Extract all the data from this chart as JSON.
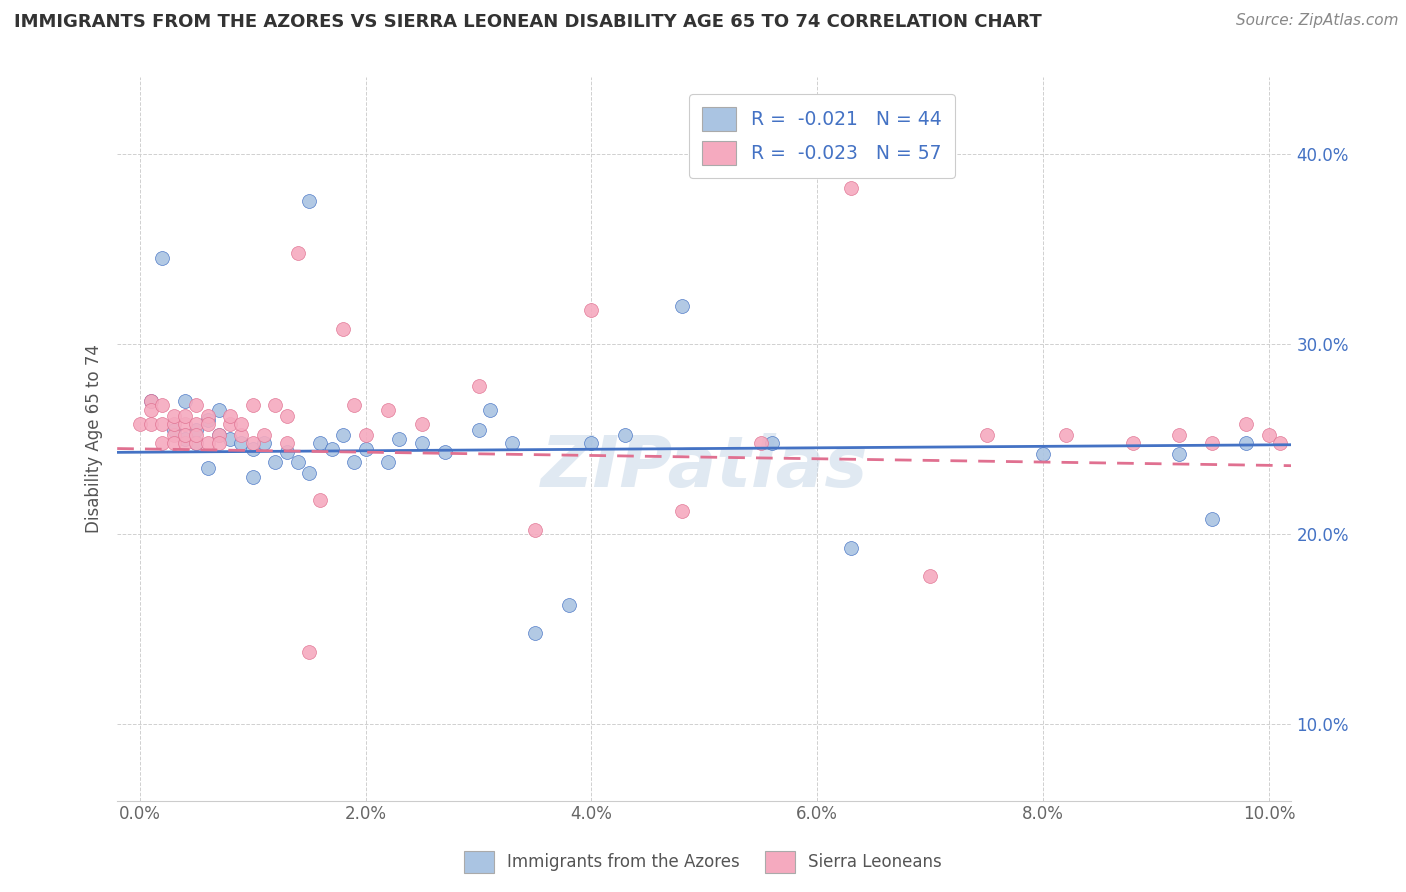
{
  "title": "IMMIGRANTS FROM THE AZORES VS SIERRA LEONEAN DISABILITY AGE 65 TO 74 CORRELATION CHART",
  "source_text": "Source: ZipAtlas.com",
  "ylabel": "Disability Age 65 to 74",
  "xlim": [
    -0.002,
    0.102
  ],
  "ylim": [
    0.06,
    0.44
  ],
  "xtick_labels": [
    "0.0%",
    "2.0%",
    "4.0%",
    "6.0%",
    "8.0%",
    "10.0%"
  ],
  "xtick_vals": [
    0.0,
    0.02,
    0.04,
    0.06,
    0.08,
    0.1
  ],
  "ytick_labels": [
    "10.0%",
    "20.0%",
    "30.0%",
    "40.0%"
  ],
  "ytick_vals": [
    0.1,
    0.2,
    0.3,
    0.4
  ],
  "series1_color": "#aac4e2",
  "series2_color": "#f5aabf",
  "trendline1_color": "#4472c4",
  "trendline2_color": "#e07090",
  "watermark": "ZIPatlas",
  "blue_scatter_x": [
    0.001,
    0.002,
    0.003,
    0.004,
    0.004,
    0.005,
    0.005,
    0.006,
    0.006,
    0.007,
    0.007,
    0.008,
    0.009,
    0.01,
    0.01,
    0.011,
    0.012,
    0.013,
    0.014,
    0.015,
    0.015,
    0.016,
    0.017,
    0.018,
    0.019,
    0.02,
    0.022,
    0.023,
    0.025,
    0.027,
    0.03,
    0.031,
    0.033,
    0.035,
    0.038,
    0.04,
    0.043,
    0.048,
    0.056,
    0.063,
    0.08,
    0.092,
    0.095,
    0.098
  ],
  "blue_scatter_y": [
    0.27,
    0.345,
    0.255,
    0.27,
    0.25,
    0.255,
    0.248,
    0.26,
    0.235,
    0.265,
    0.252,
    0.25,
    0.248,
    0.245,
    0.23,
    0.248,
    0.238,
    0.243,
    0.238,
    0.232,
    0.375,
    0.248,
    0.245,
    0.252,
    0.238,
    0.245,
    0.238,
    0.25,
    0.248,
    0.243,
    0.255,
    0.265,
    0.248,
    0.148,
    0.163,
    0.248,
    0.252,
    0.32,
    0.248,
    0.193,
    0.242,
    0.242,
    0.208,
    0.248
  ],
  "pink_scatter_x": [
    0.0,
    0.001,
    0.001,
    0.001,
    0.002,
    0.002,
    0.002,
    0.003,
    0.003,
    0.003,
    0.003,
    0.004,
    0.004,
    0.004,
    0.004,
    0.005,
    0.005,
    0.005,
    0.005,
    0.006,
    0.006,
    0.006,
    0.007,
    0.007,
    0.008,
    0.008,
    0.009,
    0.009,
    0.01,
    0.01,
    0.011,
    0.012,
    0.013,
    0.013,
    0.014,
    0.015,
    0.016,
    0.018,
    0.019,
    0.02,
    0.022,
    0.025,
    0.03,
    0.035,
    0.04,
    0.048,
    0.055,
    0.063,
    0.07,
    0.075,
    0.082,
    0.088,
    0.092,
    0.095,
    0.098,
    0.1,
    0.101
  ],
  "pink_scatter_y": [
    0.258,
    0.27,
    0.258,
    0.265,
    0.248,
    0.258,
    0.268,
    0.252,
    0.258,
    0.248,
    0.262,
    0.258,
    0.248,
    0.252,
    0.262,
    0.248,
    0.268,
    0.258,
    0.252,
    0.248,
    0.262,
    0.258,
    0.252,
    0.248,
    0.258,
    0.262,
    0.252,
    0.258,
    0.268,
    0.248,
    0.252,
    0.268,
    0.248,
    0.262,
    0.348,
    0.138,
    0.218,
    0.308,
    0.268,
    0.252,
    0.265,
    0.258,
    0.278,
    0.202,
    0.318,
    0.212,
    0.248,
    0.382,
    0.178,
    0.252,
    0.252,
    0.248,
    0.252,
    0.248,
    0.258,
    0.252,
    0.248
  ]
}
